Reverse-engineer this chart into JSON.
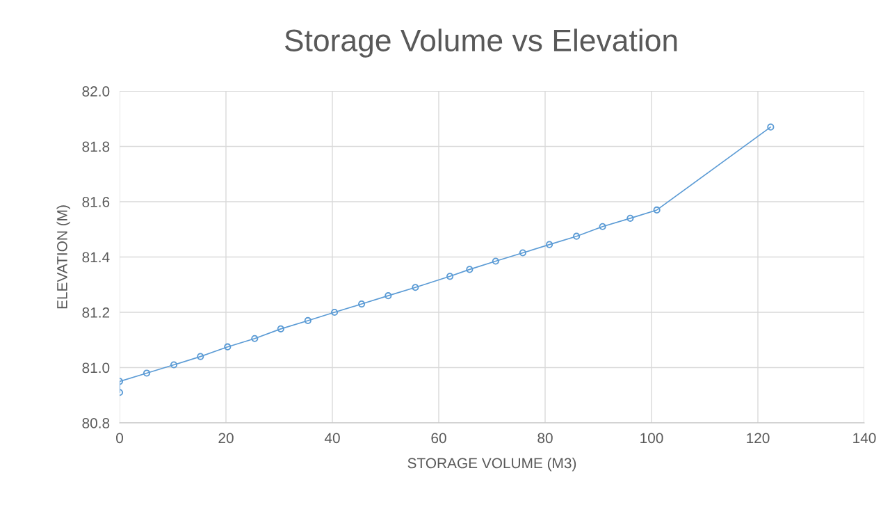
{
  "chart_data": {
    "type": "line",
    "title": "Storage Volume vs Elevation",
    "xlabel": "STORAGE VOLUME (M3)",
    "ylabel": "ELEVATION (M)",
    "x": [
      0,
      0,
      5.1,
      10.2,
      15.2,
      20.3,
      25.4,
      30.3,
      35.4,
      40.4,
      45.5,
      50.5,
      55.6,
      62.1,
      65.8,
      70.7,
      75.8,
      80.8,
      85.9,
      90.8,
      96.0,
      101.0,
      122.4
    ],
    "series": [
      {
        "color": "#5b9bd5",
        "values": [
          80.91,
          80.95,
          80.98,
          81.01,
          81.04,
          81.075,
          81.105,
          81.14,
          81.17,
          81.2,
          81.23,
          81.26,
          81.29,
          81.33,
          81.355,
          81.385,
          81.415,
          81.445,
          81.475,
          81.51,
          81.54,
          81.57,
          81.87
        ]
      }
    ],
    "xlim": [
      0,
      140
    ],
    "xticks": [
      0,
      20,
      40,
      60,
      80,
      100,
      120,
      140
    ],
    "ylim": [
      80.8,
      82.0
    ],
    "yticks": [
      {
        "value": 80.8,
        "label": "80.8"
      },
      {
        "value": 81.0,
        "label": "81.0"
      },
      {
        "value": 81.2,
        "label": "81.2"
      },
      {
        "value": 81.4,
        "label": "81.4"
      },
      {
        "value": 81.6,
        "label": "81.6"
      },
      {
        "value": 81.8,
        "label": "81.8"
      },
      {
        "value": 82.0,
        "label": "82.0"
      }
    ],
    "grid": true,
    "marker": "circle",
    "line_style": "solid"
  }
}
